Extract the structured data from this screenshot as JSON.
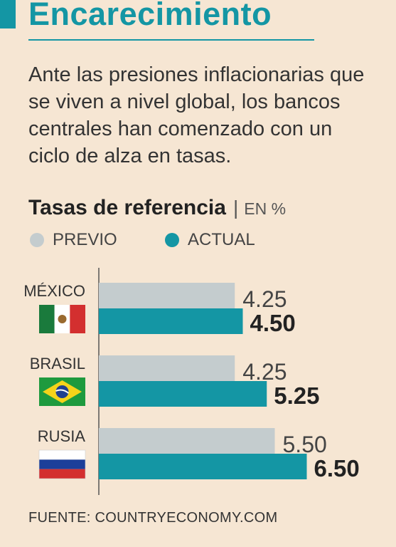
{
  "headline": "Encarecimiento",
  "intro": "Ante las presiones inflacionarias que se viven a nivel global, los bancos centrales han comenzado con un ciclo de alza en tasas.",
  "source": "FUENTE: COUNTRYECONOMY.COM",
  "colors": {
    "accent": "#1496a4",
    "previo": "#c4ccce",
    "actual": "#1496a4",
    "background": "#f6e6d3"
  },
  "chart_data": {
    "type": "bar",
    "orientation": "horizontal",
    "title": "Tasas de referencia",
    "unit": "EN %",
    "categories": [
      "MÉXICO",
      "BRASIL",
      "RUSIA"
    ],
    "series": [
      {
        "name": "PREVIO",
        "values": [
          4.25,
          4.25,
          5.5
        ],
        "labels": [
          "4.25",
          "4.25",
          "5.50"
        ]
      },
      {
        "name": "ACTUAL",
        "values": [
          4.5,
          5.25,
          6.5
        ],
        "labels": [
          "4.50",
          "5.25",
          "6.50"
        ]
      }
    ],
    "legend_position": "top-left",
    "grid": false,
    "flags": [
      "mexico-flag-icon",
      "brazil-flag-icon",
      "russia-flag-icon"
    ]
  }
}
